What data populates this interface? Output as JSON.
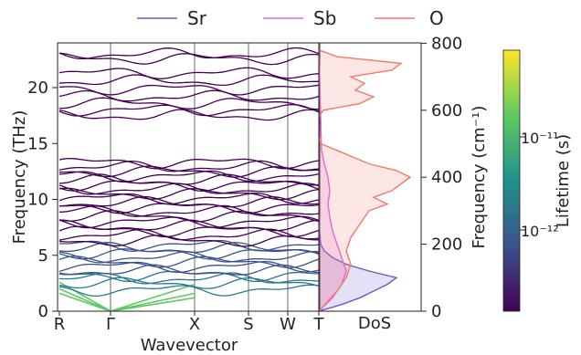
{
  "chart_data": [
    {
      "type": "line",
      "xlabel": "Wavevector",
      "ylabel": "Frequency (THz)",
      "x_ticks": [
        "R",
        "Γ",
        "X",
        "S",
        "W",
        "T"
      ],
      "ylim": [
        0,
        24
      ],
      "y_ticks": [
        "0",
        "5",
        "10",
        "15",
        "20"
      ],
      "y_tick_values": [
        0,
        5,
        10,
        15,
        20
      ],
      "grid": "vertical lines at high-symmetry points",
      "acoustic_branches": [
        {
          "x": [
            "R",
            "Γ",
            "X"
          ],
          "y": [
            2.6,
            0,
            2.4
          ]
        },
        {
          "x": [
            "R",
            "Γ",
            "X"
          ],
          "y": [
            2.0,
            0,
            1.6
          ]
        },
        {
          "x": [
            "R",
            "Γ",
            "X"
          ],
          "y": [
            1.6,
            0,
            1.2
          ]
        }
      ],
      "optical_band_levels": [
        1.9,
        2.5,
        2.9,
        3.2,
        3.6,
        4.0,
        4.4,
        4.8,
        5.2,
        5.6,
        5.9,
        6.3,
        6.8,
        7.2,
        7.6,
        8.0,
        8.5,
        8.9,
        9.3,
        9.7,
        10.1,
        10.5,
        10.9,
        11.3,
        11.7,
        12.1,
        12.5,
        12.9,
        13.3,
        17.5,
        18.0,
        18.6,
        19.2,
        19.9,
        20.6,
        21.3,
        22.6,
        23.0
      ]
    },
    {
      "type": "area",
      "xlabel": "DoS",
      "ylabel": "Frequency (cm⁻¹)",
      "y_ticks": [
        "0",
        "200",
        "400",
        "600",
        "800"
      ],
      "y_tick_values": [
        0,
        200,
        400,
        600,
        800
      ],
      "legend_position": "top",
      "series": [
        {
          "name": "Sr",
          "color": "#6a5acd",
          "freq": [
            0,
            20,
            40,
            60,
            80,
            100,
            120,
            140,
            160,
            180,
            200,
            240,
            300,
            800
          ],
          "dos": [
            0,
            0.25,
            0.45,
            0.6,
            0.75,
            0.85,
            0.55,
            0.3,
            0.15,
            0.06,
            0.02,
            0.01,
            0,
            0
          ]
        },
        {
          "name": "Sb",
          "color": "#e068e0",
          "freq": [
            0,
            40,
            80,
            120,
            160,
            200,
            240,
            280,
            320,
            360,
            400,
            440,
            480,
            800
          ],
          "dos": [
            0,
            0.15,
            0.25,
            0.3,
            0.25,
            0.2,
            0.15,
            0.12,
            0.1,
            0.12,
            0.1,
            0.06,
            0.03,
            0
          ]
        },
        {
          "name": "O",
          "color": "#f07a6a",
          "freq": [
            0,
            60,
            100,
            140,
            180,
            220,
            260,
            300,
            320,
            340,
            360,
            380,
            400,
            420,
            440,
            480,
            500,
            520,
            580,
            600,
            620,
            640,
            660,
            680,
            700,
            720,
            740,
            760,
            780,
            800
          ],
          "dos": [
            0,
            0.2,
            0.3,
            0.35,
            0.3,
            0.35,
            0.45,
            0.55,
            0.75,
            0.6,
            0.8,
            0.9,
            1.0,
            0.85,
            0.55,
            0.2,
            0.02,
            0,
            0,
            0.05,
            0.45,
            0.6,
            0.4,
            0.5,
            0.35,
            0.8,
            0.9,
            0.2,
            0,
            0
          ]
        }
      ]
    },
    {
      "type": "heatmap",
      "colorbar_label": "Lifetime (s)",
      "colorbar_ticks": [
        "10⁻¹¹",
        "10⁻¹²"
      ],
      "colormap": "viridis",
      "color_stops": [
        "#440154",
        "#3b528b",
        "#21918c",
        "#5ec962",
        "#fde725"
      ]
    }
  ]
}
